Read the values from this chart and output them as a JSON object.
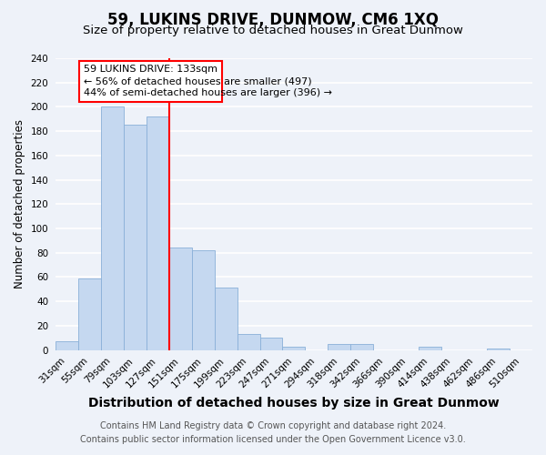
{
  "title": "59, LUKINS DRIVE, DUNMOW, CM6 1XQ",
  "subtitle": "Size of property relative to detached houses in Great Dunmow",
  "xlabel": "Distribution of detached houses by size in Great Dunmow",
  "ylabel": "Number of detached properties",
  "bin_labels": [
    "31sqm",
    "55sqm",
    "79sqm",
    "103sqm",
    "127sqm",
    "151sqm",
    "175sqm",
    "199sqm",
    "223sqm",
    "247sqm",
    "271sqm",
    "294sqm",
    "318sqm",
    "342sqm",
    "366sqm",
    "390sqm",
    "414sqm",
    "438sqm",
    "462sqm",
    "486sqm",
    "510sqm"
  ],
  "bar_values": [
    7,
    59,
    200,
    185,
    192,
    84,
    82,
    51,
    13,
    10,
    3,
    0,
    5,
    5,
    0,
    0,
    3,
    0,
    0,
    1,
    0
  ],
  "bar_color": "#c5d8f0",
  "bar_edge_color": "#8ab0d8",
  "ylim": [
    0,
    240
  ],
  "yticks": [
    0,
    20,
    40,
    60,
    80,
    100,
    120,
    140,
    160,
    180,
    200,
    220,
    240
  ],
  "vline_x": 4.5,
  "vline_color": "red",
  "annotation_line1": "59 LUKINS DRIVE: 133sqm",
  "annotation_line2": "← 56% of detached houses are smaller (497)",
  "annotation_line3": "44% of semi-detached houses are larger (396) →",
  "footer_line1": "Contains HM Land Registry data © Crown copyright and database right 2024.",
  "footer_line2": "Contains public sector information licensed under the Open Government Licence v3.0.",
  "background_color": "#eef2f9",
  "grid_color": "#ffffff",
  "title_fontsize": 12,
  "subtitle_fontsize": 9.5,
  "xlabel_fontsize": 10,
  "ylabel_fontsize": 8.5,
  "tick_fontsize": 7.5,
  "annotation_fontsize": 8,
  "footer_fontsize": 7
}
